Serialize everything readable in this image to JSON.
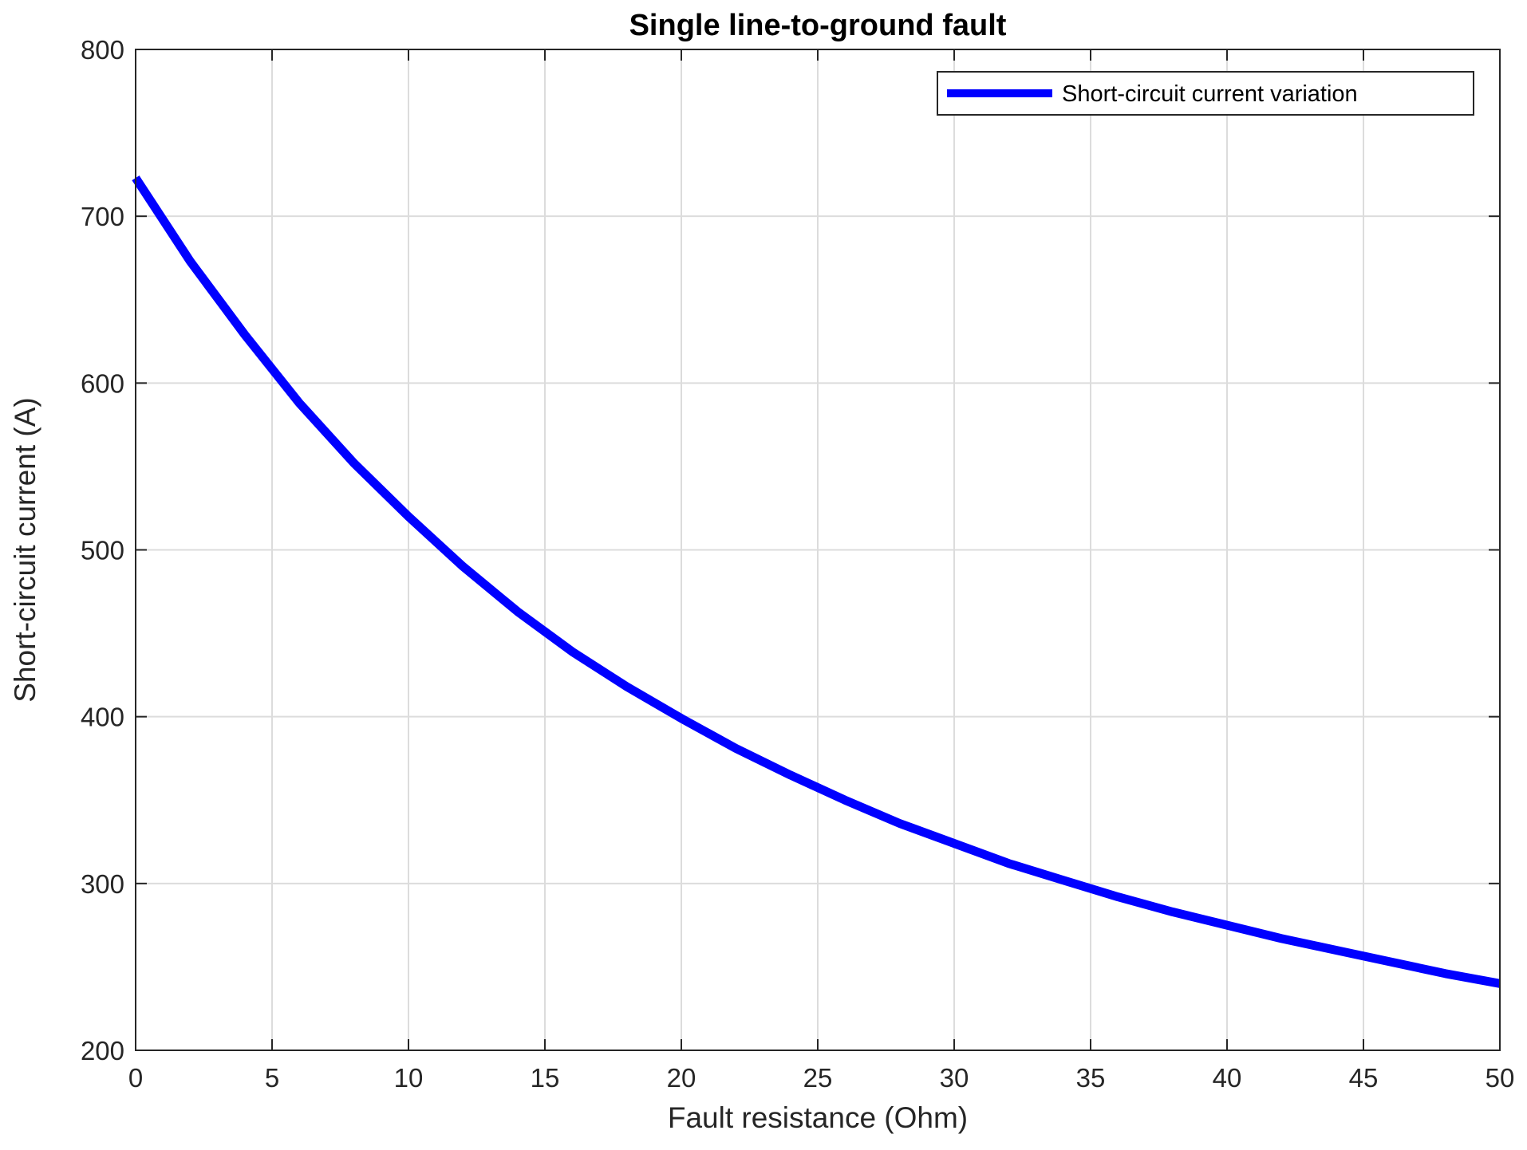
{
  "chart_data": {
    "type": "line",
    "title": "Single line-to-ground fault",
    "xlabel": "Fault resistance (Ohm)",
    "ylabel": "Short-circuit current (A)",
    "xlim": [
      0,
      50
    ],
    "ylim": [
      200,
      800
    ],
    "xticks": [
      0,
      5,
      10,
      15,
      20,
      25,
      30,
      35,
      40,
      45,
      50
    ],
    "yticks": [
      200,
      300,
      400,
      500,
      600,
      700,
      800
    ],
    "grid": true,
    "legend_position": "top-right",
    "series": [
      {
        "name": "Short-circuit current variation",
        "color": "#0000ff",
        "x": [
          0,
          2,
          4,
          6,
          8,
          10,
          12,
          14,
          16,
          18,
          20,
          22,
          24,
          26,
          28,
          30,
          32,
          34,
          36,
          38,
          40,
          42,
          44,
          46,
          48,
          50
        ],
        "y": [
          723,
          673,
          629,
          588,
          552,
          520,
          490,
          463,
          439,
          418,
          399,
          381,
          365,
          350,
          336,
          324,
          312,
          302,
          292,
          283,
          275,
          267,
          260,
          253,
          246,
          240
        ]
      }
    ]
  }
}
